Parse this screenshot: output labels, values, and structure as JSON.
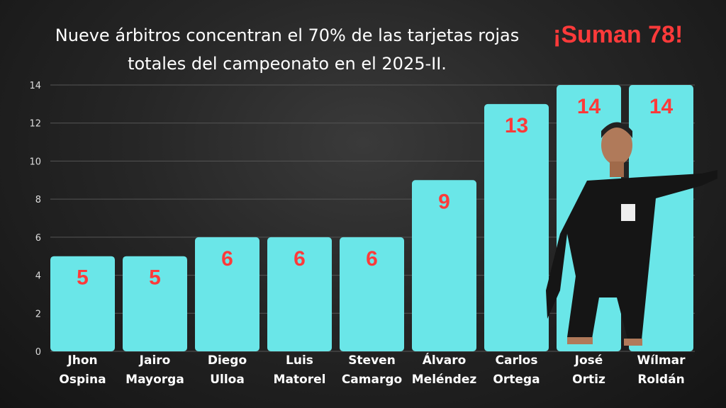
{
  "chart_data": {
    "type": "bar",
    "title": "Nueve árbitros concentran el 70% de las tarjetas rojas totales del campeonato en el 2025-II.",
    "annotation": "¡Suman 78!",
    "categories": [
      [
        "Jhon",
        "Ospina"
      ],
      [
        "Jairo",
        "Mayorga"
      ],
      [
        "Diego",
        "Ulloa"
      ],
      [
        "Luis",
        "Matorel"
      ],
      [
        "Steven",
        "Camargo"
      ],
      [
        "Álvaro",
        "Meléndez"
      ],
      [
        "Carlos",
        "Ortega"
      ],
      [
        "José",
        "Ortiz"
      ],
      [
        "Wílmar",
        "Roldán"
      ]
    ],
    "values": [
      5,
      5,
      6,
      6,
      6,
      9,
      13,
      14,
      14
    ],
    "ylim": [
      0,
      14
    ],
    "yticks": [
      0,
      2,
      4,
      6,
      8,
      10,
      12,
      14
    ],
    "grid": true,
    "colors": {
      "bar": "#6ae6e8",
      "data_label": "#ff3a3a",
      "text": "#ffffff",
      "annotation": "#ff3a3a"
    }
  }
}
